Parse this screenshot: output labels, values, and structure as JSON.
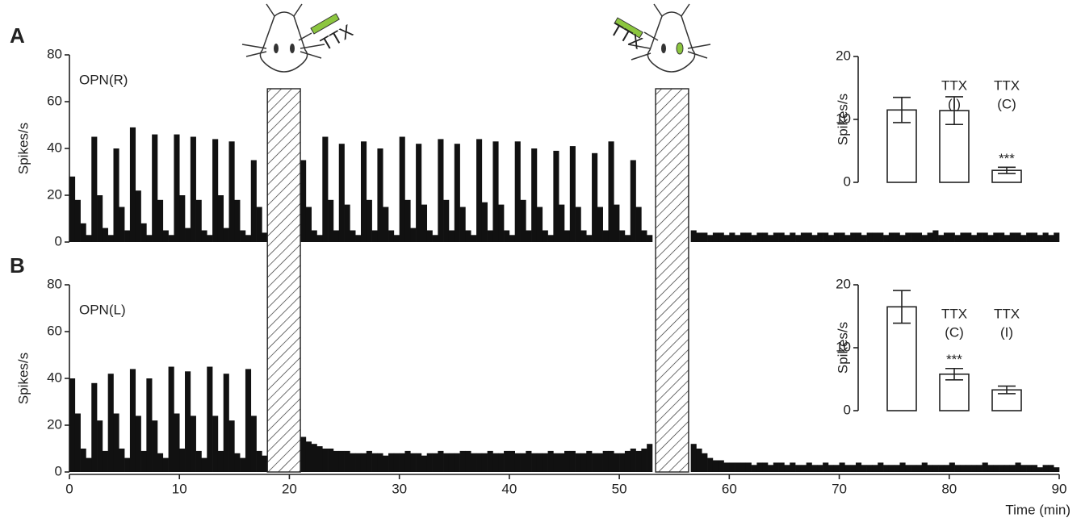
{
  "injection_labels": [
    "TTX",
    "TTX"
  ],
  "ttx_intervals": [
    [
      18,
      21
    ],
    [
      53.3,
      56.3
    ]
  ],
  "chart_data": [
    {
      "type": "histogram",
      "panel": "A",
      "label": "OPN(R)",
      "ylabel": "Spikes/s",
      "color": "#111111",
      "xlim": [
        0,
        90
      ],
      "ylim": [
        0,
        80
      ],
      "yticks": [
        0,
        20,
        40,
        60,
        80
      ],
      "bins": [
        0,
        0.5,
        1,
        1.5,
        2,
        2.5,
        3,
        3.5,
        4,
        4.5,
        5,
        5.5,
        6,
        6.5,
        7,
        7.5,
        8,
        8.5,
        9,
        9.5,
        10,
        10.5,
        11,
        11.5,
        12,
        12.5,
        13,
        13.5,
        14,
        14.5,
        15,
        15.5,
        16,
        16.5,
        17,
        17.5,
        18,
        18.5,
        19,
        19.5,
        20,
        20.5,
        21,
        21.5,
        22,
        22.5,
        23,
        23.5,
        24,
        24.5,
        25,
        25.5,
        26,
        26.5,
        27,
        27.5,
        28,
        28.5,
        29,
        29.5,
        30,
        30.5,
        31,
        31.5,
        32,
        32.5,
        33,
        33.5,
        34,
        34.5,
        35,
        35.5,
        36,
        36.5,
        37,
        37.5,
        38,
        38.5,
        39,
        39.5,
        40,
        40.5,
        41,
        41.5,
        42,
        42.5,
        43,
        43.5,
        44,
        44.5,
        45,
        45.5,
        46,
        46.5,
        47,
        47.5,
        48,
        48.5,
        49,
        49.5,
        50,
        50.5,
        51,
        51.5,
        52,
        52.5,
        53,
        53.5,
        54,
        54.5,
        55,
        55.5,
        56,
        56.5,
        57,
        57.5,
        58,
        58.5,
        59,
        59.5,
        60,
        60.5,
        61,
        61.5,
        62,
        62.5,
        63,
        63.5,
        64,
        64.5,
        65,
        65.5,
        66,
        66.5,
        67,
        67.5,
        68,
        68.5,
        69,
        69.5,
        70,
        70.5,
        71,
        71.5,
        72,
        72.5,
        73,
        73.5,
        74,
        74.5,
        75,
        75.5,
        76,
        76.5,
        77,
        77.5,
        78,
        78.5,
        79,
        79.5,
        80,
        80.5,
        81,
        81.5,
        82,
        82.5,
        83,
        83.5,
        84,
        84.5,
        85,
        85.5,
        86,
        86.5,
        87,
        87.5,
        88,
        88.5,
        89,
        89.5,
        90
      ],
      "values": [
        28,
        18,
        8,
        3,
        45,
        20,
        6,
        3,
        40,
        15,
        5,
        49,
        22,
        8,
        3,
        46,
        18,
        5,
        3,
        46,
        20,
        6,
        45,
        18,
        5,
        3,
        44,
        20,
        6,
        43,
        18,
        5,
        3,
        35,
        15,
        4,
        null,
        null,
        null,
        null,
        null,
        null,
        35,
        15,
        5,
        3,
        45,
        18,
        5,
        42,
        16,
        5,
        3,
        43,
        18,
        5,
        40,
        15,
        5,
        3,
        45,
        18,
        6,
        42,
        16,
        5,
        3,
        44,
        18,
        5,
        42,
        15,
        5,
        3,
        44,
        17,
        5,
        43,
        16,
        5,
        3,
        43,
        18,
        5,
        40,
        15,
        5,
        3,
        39,
        16,
        5,
        41,
        15,
        5,
        3,
        38,
        15,
        5,
        43,
        16,
        5,
        3,
        35,
        15,
        5,
        3,
        null,
        null,
        null,
        null,
        null,
        null,
        null,
        5,
        4,
        4,
        3,
        4,
        4,
        3,
        4,
        3,
        4,
        4,
        3,
        4,
        4,
        3,
        4,
        4,
        3,
        4,
        3,
        4,
        4,
        3,
        4,
        4,
        3,
        4,
        4,
        3,
        4,
        4,
        3,
        4,
        4,
        4,
        3,
        4,
        4,
        3,
        4,
        4,
        4,
        3,
        4,
        5,
        3,
        4,
        4,
        3,
        4,
        4,
        3,
        4,
        4,
        3,
        4,
        4,
        3,
        4,
        4,
        3,
        4,
        4,
        3,
        4,
        3,
        4
      ]
    },
    {
      "type": "histogram",
      "panel": "B",
      "label": "OPN(L)",
      "ylabel": "Spikes/s",
      "xlabel": "Time (min)",
      "color": "#111111",
      "xlim": [
        0,
        90
      ],
      "ylim": [
        0,
        80
      ],
      "yticks": [
        0,
        20,
        40,
        60,
        80
      ],
      "xticks": [
        0,
        10,
        20,
        30,
        40,
        50,
        60,
        70,
        80,
        90
      ],
      "bins": [
        0,
        0.5,
        1,
        1.5,
        2,
        2.5,
        3,
        3.5,
        4,
        4.5,
        5,
        5.5,
        6,
        6.5,
        7,
        7.5,
        8,
        8.5,
        9,
        9.5,
        10,
        10.5,
        11,
        11.5,
        12,
        12.5,
        13,
        13.5,
        14,
        14.5,
        15,
        15.5,
        16,
        16.5,
        17,
        17.5,
        18,
        18.5,
        19,
        19.5,
        20,
        20.5,
        21,
        21.5,
        22,
        22.5,
        23,
        23.5,
        24,
        24.5,
        25,
        25.5,
        26,
        26.5,
        27,
        27.5,
        28,
        28.5,
        29,
        29.5,
        30,
        30.5,
        31,
        31.5,
        32,
        32.5,
        33,
        33.5,
        34,
        34.5,
        35,
        35.5,
        36,
        36.5,
        37,
        37.5,
        38,
        38.5,
        39,
        39.5,
        40,
        40.5,
        41,
        41.5,
        42,
        42.5,
        43,
        43.5,
        44,
        44.5,
        45,
        45.5,
        46,
        46.5,
        47,
        47.5,
        48,
        48.5,
        49,
        49.5,
        50,
        50.5,
        51,
        51.5,
        52,
        52.5,
        53,
        53.5,
        54,
        54.5,
        55,
        55.5,
        56,
        56.5,
        57,
        57.5,
        58,
        58.5,
        59,
        59.5,
        60,
        60.5,
        61,
        61.5,
        62,
        62.5,
        63,
        63.5,
        64,
        64.5,
        65,
        65.5,
        66,
        66.5,
        67,
        67.5,
        68,
        68.5,
        69,
        69.5,
        70,
        70.5,
        71,
        71.5,
        72,
        72.5,
        73,
        73.5,
        74,
        74.5,
        75,
        75.5,
        76,
        76.5,
        77,
        77.5,
        78,
        78.5,
        79,
        79.5,
        80,
        80.5,
        81,
        81.5,
        82,
        82.5,
        83,
        83.5,
        84,
        84.5,
        85,
        85.5,
        86,
        86.5,
        87,
        87.5,
        88,
        88.5,
        89,
        89.5,
        90
      ],
      "values": [
        40,
        25,
        10,
        6,
        38,
        22,
        9,
        42,
        25,
        10,
        6,
        44,
        24,
        9,
        40,
        22,
        8,
        6,
        45,
        25,
        10,
        43,
        24,
        9,
        6,
        45,
        24,
        9,
        42,
        22,
        8,
        6,
        44,
        24,
        9,
        7,
        null,
        null,
        null,
        null,
        null,
        null,
        15,
        13,
        12,
        11,
        10,
        10,
        9,
        9,
        9,
        8,
        8,
        8,
        9,
        8,
        8,
        7,
        8,
        8,
        8,
        9,
        8,
        8,
        7,
        8,
        8,
        9,
        8,
        8,
        8,
        9,
        9,
        8,
        8,
        8,
        9,
        8,
        8,
        9,
        9,
        8,
        8,
        9,
        8,
        8,
        8,
        9,
        8,
        8,
        9,
        9,
        8,
        8,
        9,
        8,
        8,
        9,
        9,
        8,
        8,
        9,
        10,
        9,
        10,
        12,
        null,
        null,
        null,
        null,
        null,
        null,
        null,
        12,
        10,
        8,
        6,
        5,
        5,
        4,
        4,
        4,
        4,
        4,
        3,
        4,
        4,
        3,
        4,
        4,
        3,
        4,
        3,
        3,
        4,
        3,
        3,
        4,
        3,
        3,
        4,
        3,
        3,
        4,
        3,
        3,
        3,
        4,
        3,
        3,
        3,
        4,
        3,
        3,
        3,
        4,
        3,
        3,
        3,
        3,
        4,
        3,
        3,
        3,
        3,
        3,
        4,
        3,
        3,
        3,
        3,
        3,
        4,
        3,
        3,
        3,
        2,
        3,
        3,
        2
      ]
    },
    {
      "type": "bar",
      "ylabel": "Spikes/s",
      "ylim": [
        0,
        20
      ],
      "yticks": [
        0,
        10,
        20
      ],
      "categories": [
        null,
        [
          "TTX",
          "(I)"
        ],
        [
          "TTX",
          "(C)"
        ]
      ],
      "values": [
        11.5,
        11.4,
        1.9
      ],
      "errors": [
        2.0,
        2.2,
        0.5
      ],
      "value_annotations": [
        null,
        null,
        "***"
      ]
    },
    {
      "type": "bar",
      "ylabel": "Spikes/s",
      "ylim": [
        0,
        20
      ],
      "yticks": [
        0,
        10,
        20
      ],
      "categories": [
        null,
        [
          "TTX",
          "(C)"
        ],
        [
          "TTX",
          "(I)"
        ]
      ],
      "values": [
        16.5,
        5.8,
        3.3
      ],
      "errors": [
        2.6,
        0.9,
        0.6
      ],
      "value_annotations": [
        null,
        "***",
        null
      ]
    }
  ]
}
